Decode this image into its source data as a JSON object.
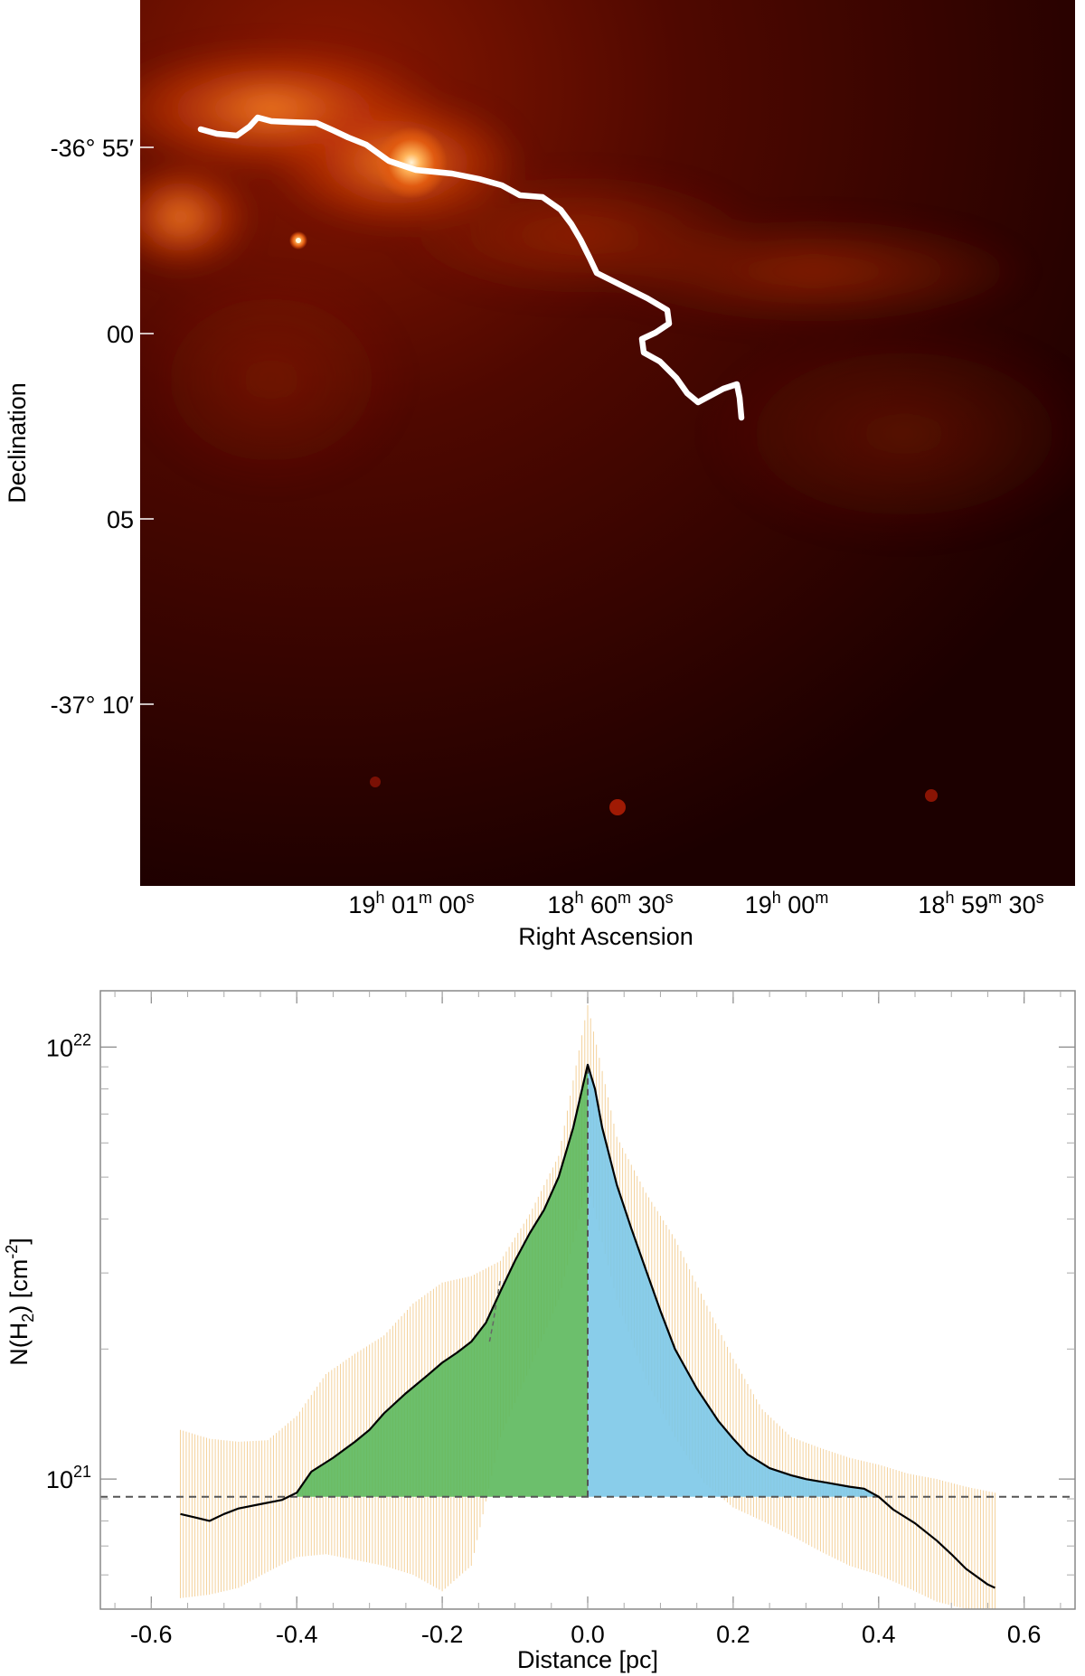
{
  "figure": {
    "top_panel": {
      "type": "sky_map",
      "colormap": "red-heat",
      "xlabel": "Right Ascension",
      "ylabel": "Declination",
      "dec_ticks": [
        "-36° 55′",
        "00",
        "05",
        "-37° 10′"
      ],
      "ra_ticks": [
        {
          "h": "19",
          "m": "01",
          "s": "00"
        },
        {
          "h": "18",
          "m": "60",
          "s": "30"
        },
        {
          "h": "19",
          "m": "00",
          "s": ""
        },
        {
          "h": "18",
          "m": "59",
          "s": "30"
        }
      ],
      "filament_spine_color": "#ffffff"
    },
    "bottom_panel": {
      "chart_data": {
        "type": "line",
        "xlabel": "Distance [pc]",
        "ylabel_base": "N(H",
        "ylabel_sub": "2",
        "ylabel_mid": ") [cm",
        "ylabel_sup": "-2",
        "ylabel_end": "]",
        "xlim": [
          -0.67,
          0.67
        ],
        "ylim": [
          5e+20,
          1.35e+22
        ],
        "yscale": "log",
        "x_ticks": [
          "-0.6",
          "-0.4",
          "-0.2",
          "0.0",
          "0.2",
          "0.4",
          "0.6"
        ],
        "x_tick_values": [
          -0.6,
          -0.4,
          -0.2,
          0.0,
          0.2,
          0.4,
          0.6
        ],
        "y_ticks": [
          {
            "value": 1e+21,
            "base": "10",
            "exp": "21"
          },
          {
            "value": 1e+22,
            "base": "10",
            "exp": "22"
          }
        ],
        "background_level": 9.1e+20,
        "profile": {
          "x": [
            -0.56,
            -0.54,
            -0.52,
            -0.5,
            -0.48,
            -0.45,
            -0.42,
            -0.4,
            -0.38,
            -0.35,
            -0.32,
            -0.3,
            -0.28,
            -0.25,
            -0.22,
            -0.2,
            -0.18,
            -0.16,
            -0.14,
            -0.12,
            -0.1,
            -0.08,
            -0.06,
            -0.04,
            -0.02,
            0.0,
            0.01,
            0.02,
            0.04,
            0.06,
            0.08,
            0.1,
            0.12,
            0.15,
            0.18,
            0.2,
            0.22,
            0.25,
            0.28,
            0.3,
            0.33,
            0.36,
            0.38,
            0.4,
            0.42,
            0.45,
            0.48,
            0.5,
            0.52,
            0.55,
            0.56
          ],
          "y": [
            8.3e+20,
            8.15e+20,
            8e+20,
            8.3e+20,
            8.55e+20,
            8.75e+20,
            8.95e+20,
            9.3e+20,
            1.04e+21,
            1.12e+21,
            1.22e+21,
            1.3e+21,
            1.42e+21,
            1.58e+21,
            1.74e+21,
            1.86e+21,
            1.96e+21,
            2.08e+21,
            2.3e+21,
            2.72e+21,
            3.2e+21,
            3.7e+21,
            4.2e+21,
            5e+21,
            6.5e+21,
            9.1e+21,
            8e+21,
            6.5e+21,
            4.8e+21,
            3.8e+21,
            3.05e+21,
            2.45e+21,
            2e+21,
            1.62e+21,
            1.36e+21,
            1.24e+21,
            1.14e+21,
            1.06e+21,
            1.02e+21,
            1e+21,
            9.8e+20,
            9.6e+20,
            9.5e+20,
            9.1e+20,
            8.5e+20,
            7.9e+20,
            7.2e+20,
            6.7e+20,
            6.2e+20,
            5.7e+20,
            5.6e+20
          ]
        },
        "error_band": {
          "x": [
            -0.56,
            -0.52,
            -0.48,
            -0.44,
            -0.4,
            -0.36,
            -0.32,
            -0.28,
            -0.24,
            -0.2,
            -0.16,
            -0.12,
            -0.08,
            -0.04,
            0.0,
            0.04,
            0.08,
            0.12,
            0.16,
            0.2,
            0.24,
            0.28,
            0.32,
            0.36,
            0.4,
            0.44,
            0.48,
            0.52,
            0.56
          ],
          "upper": [
            1.3e+21,
            1.24e+21,
            1.22e+21,
            1.23e+21,
            1.4e+21,
            1.75e+21,
            1.95e+21,
            2.15e+21,
            2.55e+21,
            2.85e+21,
            2.95e+21,
            3.2e+21,
            4.1e+21,
            5.6e+21,
            1.25e+22,
            6.2e+21,
            4.6e+21,
            3.6e+21,
            2.6e+21,
            1.9e+21,
            1.45e+21,
            1.25e+21,
            1.18e+21,
            1.12e+21,
            1.08e+21,
            1.03e+21,
            1e+21,
            9.6e+20,
            9.3e+20
          ],
          "lower": [
            5.3e+20,
            5.4e+20,
            5.6e+20,
            6.1e+20,
            6.6e+20,
            6.7e+20,
            6.5e+20,
            6.3e+20,
            6e+20,
            5.5e+20,
            6.3e+20,
            1.25e+21,
            1.8e+21,
            2.6e+21,
            4.8e+21,
            2.6e+21,
            1.7e+21,
            1.25e+21,
            9.8e+20,
            8.6e+20,
            8e+20,
            7.4e+20,
            6.8e+20,
            6.3e+20,
            6e+20,
            5.6e+20,
            5.2e+20,
            5e+20,
            5e+20
          ]
        },
        "fit_dashed": {
          "x": [
            -0.135,
            -0.13,
            -0.125,
            -0.12
          ],
          "y": [
            2.08e+21,
            2.3e+21,
            2.6e+21,
            2.9e+21
          ]
        },
        "fills": {
          "left_color": "#5cb85c",
          "right_color": "#7cc8e8",
          "band_color": "#f2c98a"
        }
      }
    }
  }
}
